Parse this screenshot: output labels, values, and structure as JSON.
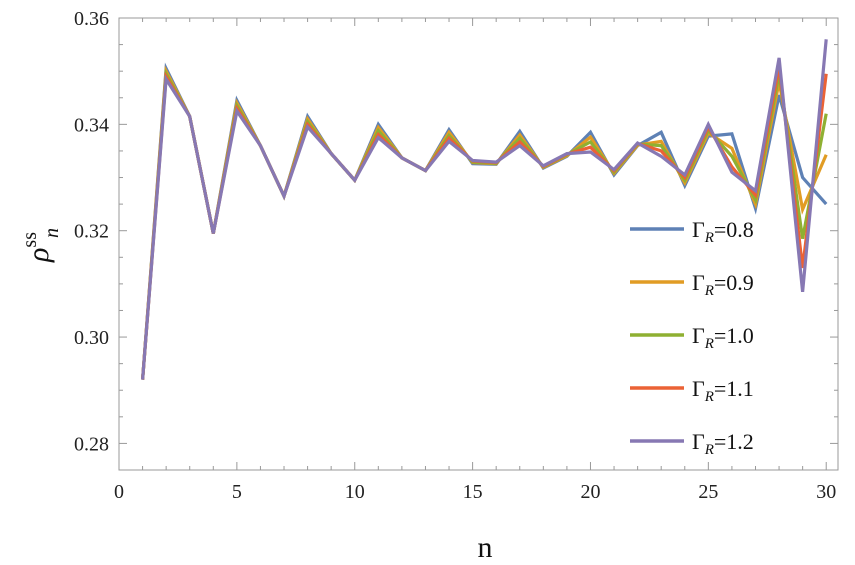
{
  "chart_data": {
    "type": "line",
    "title": "",
    "xlabel": "n",
    "ylabel": "ρ",
    "ylabel_sup": "ss",
    "ylabel_sub": "n",
    "xlim": [
      0,
      30.5
    ],
    "ylim": [
      0.275,
      0.36
    ],
    "xticks": [
      0,
      5,
      10,
      15,
      20,
      25,
      30
    ],
    "yticks": [
      0.28,
      0.3,
      0.32,
      0.34,
      0.36
    ],
    "ytick_labels": [
      "0.28",
      "0.30",
      "0.32",
      "0.34",
      "0.36"
    ],
    "grid": false,
    "legend_placement": "right",
    "x": [
      1,
      2,
      3,
      4,
      5,
      6,
      7,
      8,
      9,
      10,
      11,
      12,
      13,
      14,
      15,
      16,
      17,
      18,
      19,
      20,
      21,
      22,
      23,
      24,
      25,
      26,
      27,
      28,
      29,
      30
    ],
    "series": [
      {
        "name": "Γ_R=0.8",
        "label_main": "Γ",
        "label_sub": "R",
        "label_val": "=0.8",
        "color": "#5E81B5",
        "values": [
          0.292,
          0.3505,
          0.3415,
          0.3195,
          0.3445,
          0.336,
          0.3265,
          0.3415,
          0.3345,
          0.3295,
          0.34,
          0.3337,
          0.3313,
          0.339,
          0.3326,
          0.3325,
          0.3387,
          0.3318,
          0.334,
          0.3385,
          0.3305,
          0.336,
          0.3385,
          0.3285,
          0.3378,
          0.3382,
          0.3242,
          0.3455,
          0.33,
          0.325
        ]
      },
      {
        "name": "Γ_R=0.9",
        "label_main": "Γ",
        "label_sub": "R",
        "label_val": "=0.9",
        "color": "#E19C24",
        "values": [
          0.292,
          0.35,
          0.3415,
          0.3195,
          0.344,
          0.336,
          0.3265,
          0.341,
          0.3345,
          0.3295,
          0.3394,
          0.3337,
          0.3313,
          0.3385,
          0.3328,
          0.3326,
          0.338,
          0.3319,
          0.3341,
          0.3376,
          0.3308,
          0.3361,
          0.3368,
          0.329,
          0.3384,
          0.3355,
          0.325,
          0.348,
          0.324,
          0.3343
        ]
      },
      {
        "name": "Γ_R=1.0",
        "label_main": "Γ",
        "label_sub": "R",
        "label_val": "=1.0",
        "color": "#8FB032",
        "values": [
          0.292,
          0.3495,
          0.3415,
          0.3195,
          0.3435,
          0.336,
          0.3265,
          0.3405,
          0.3345,
          0.3295,
          0.3388,
          0.3337,
          0.3313,
          0.3379,
          0.3329,
          0.3327,
          0.3374,
          0.332,
          0.3343,
          0.3367,
          0.331,
          0.3363,
          0.336,
          0.3295,
          0.3389,
          0.334,
          0.3258,
          0.3495,
          0.3185,
          0.342
        ]
      },
      {
        "name": "Γ_R=1.1",
        "label_main": "Γ",
        "label_sub": "R",
        "label_val": "=1.1",
        "color": "#EB6235",
        "values": [
          0.292,
          0.349,
          0.3415,
          0.3195,
          0.343,
          0.336,
          0.3265,
          0.34,
          0.3345,
          0.3295,
          0.3381,
          0.3337,
          0.3313,
          0.3374,
          0.3331,
          0.3328,
          0.3367,
          0.3321,
          0.3344,
          0.3357,
          0.3313,
          0.3364,
          0.335,
          0.33,
          0.3395,
          0.332,
          0.3267,
          0.351,
          0.313,
          0.3495
        ]
      },
      {
        "name": "Γ_R=1.2",
        "label_main": "Γ",
        "label_sub": "R",
        "label_val": "=1.2",
        "color": "#8778B3",
        "values": [
          0.292,
          0.3485,
          0.3415,
          0.3195,
          0.3425,
          0.336,
          0.3265,
          0.3395,
          0.3345,
          0.3295,
          0.3375,
          0.3337,
          0.3313,
          0.3368,
          0.3332,
          0.3329,
          0.336,
          0.3322,
          0.3345,
          0.3348,
          0.3315,
          0.3365,
          0.334,
          0.3305,
          0.34,
          0.331,
          0.3275,
          0.3525,
          0.3085,
          0.356
        ]
      }
    ]
  }
}
